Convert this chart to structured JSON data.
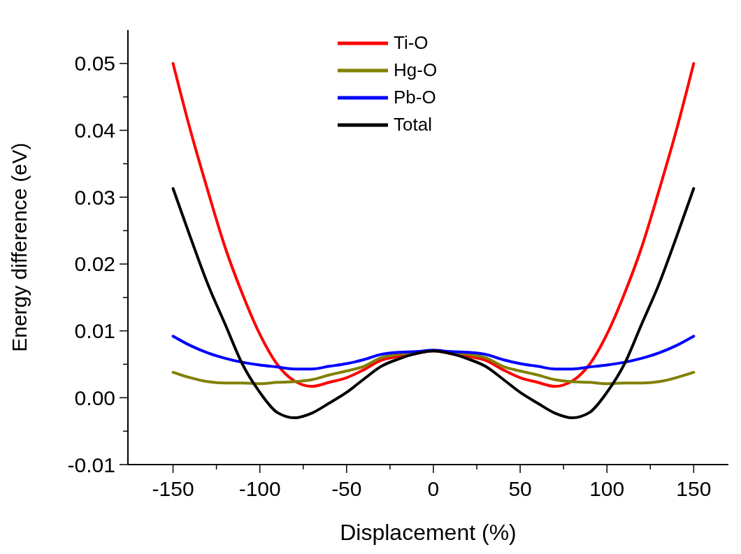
{
  "chart_data": {
    "type": "line",
    "xlabel": "Displacement (%)",
    "ylabel": "Energy difference (eV)",
    "x": [
      -150,
      -140,
      -130,
      -120,
      -110,
      -100,
      -90,
      -80,
      -70,
      -60,
      -50,
      -40,
      -30,
      -20,
      -10,
      0,
      10,
      20,
      30,
      40,
      50,
      60,
      70,
      80,
      90,
      100,
      110,
      120,
      130,
      140,
      150
    ],
    "series": [
      {
        "name": "Ti-O",
        "color": "#ff0000",
        "values": [
          0.05,
          0.04,
          0.031,
          0.0225,
          0.0155,
          0.0095,
          0.005,
          0.0025,
          0.0017,
          0.0023,
          0.003,
          0.0042,
          0.0056,
          0.0062,
          0.0066,
          0.007,
          0.0066,
          0.0062,
          0.0056,
          0.0042,
          0.003,
          0.0023,
          0.0017,
          0.0025,
          0.005,
          0.0095,
          0.0155,
          0.0225,
          0.031,
          0.04,
          0.05
        ]
      },
      {
        "name": "Hg-O",
        "color": "#808000",
        "values": [
          0.0038,
          0.003,
          0.0024,
          0.0022,
          0.0022,
          0.0021,
          0.0023,
          0.0024,
          0.0027,
          0.0034,
          0.004,
          0.0047,
          0.006,
          0.0065,
          0.0068,
          0.007,
          0.0068,
          0.0065,
          0.006,
          0.0047,
          0.004,
          0.0034,
          0.0027,
          0.0024,
          0.0023,
          0.0021,
          0.0022,
          0.0022,
          0.0024,
          0.003,
          0.0038
        ]
      },
      {
        "name": "Pb-O",
        "color": "#0000ff",
        "values": [
          0.0092,
          0.0078,
          0.0067,
          0.0059,
          0.0053,
          0.0049,
          0.0046,
          0.0043,
          0.0043,
          0.0047,
          0.0051,
          0.0057,
          0.0065,
          0.0068,
          0.0069,
          0.0071,
          0.0069,
          0.0068,
          0.0065,
          0.0057,
          0.0051,
          0.0047,
          0.0043,
          0.0043,
          0.0046,
          0.0049,
          0.0053,
          0.0059,
          0.0067,
          0.0078,
          0.0092
        ]
      },
      {
        "name": "Total",
        "color": "#000000",
        "values": [
          0.0313,
          0.024,
          0.017,
          0.011,
          0.005,
          0.0008,
          -0.0022,
          -0.003,
          -0.0023,
          -0.0008,
          0.0008,
          0.0028,
          0.0047,
          0.0058,
          0.0066,
          0.007,
          0.0066,
          0.0058,
          0.0047,
          0.0028,
          0.0008,
          -0.0008,
          -0.0023,
          -0.003,
          -0.0022,
          0.0008,
          0.005,
          0.011,
          0.017,
          0.024,
          0.0313
        ]
      }
    ],
    "xlim": [
      -176,
      170
    ],
    "ylim": [
      -0.01,
      0.055
    ],
    "xticks": [
      -150,
      {
        "value": -125,
        "label": null
      },
      -100,
      {
        "value": -75,
        "label": null
      },
      -50,
      {
        "value": -25,
        "label": null
      },
      0,
      {
        "value": 25,
        "label": null
      },
      50,
      {
        "value": 75,
        "label": null
      },
      100,
      {
        "value": 125,
        "label": null
      },
      150
    ],
    "yticks": [
      {
        "value": -0.01,
        "label": "-0.01"
      },
      {
        "value": -0.005,
        "label": null
      },
      {
        "value": 0,
        "label": "0.00"
      },
      {
        "value": 0.005,
        "label": null
      },
      {
        "value": 0.01,
        "label": "0.01"
      },
      {
        "value": 0.015,
        "label": null
      },
      {
        "value": 0.02,
        "label": "0.02"
      },
      {
        "value": 0.025,
        "label": null
      },
      {
        "value": 0.03,
        "label": "0.03"
      },
      {
        "value": 0.035,
        "label": null
      },
      {
        "value": 0.04,
        "label": "0.04"
      },
      {
        "value": 0.045,
        "label": null
      },
      {
        "value": 0.05,
        "label": "0.05"
      }
    ],
    "grid": false,
    "legend": "top",
    "marker": "none",
    "line_style": "solid"
  }
}
